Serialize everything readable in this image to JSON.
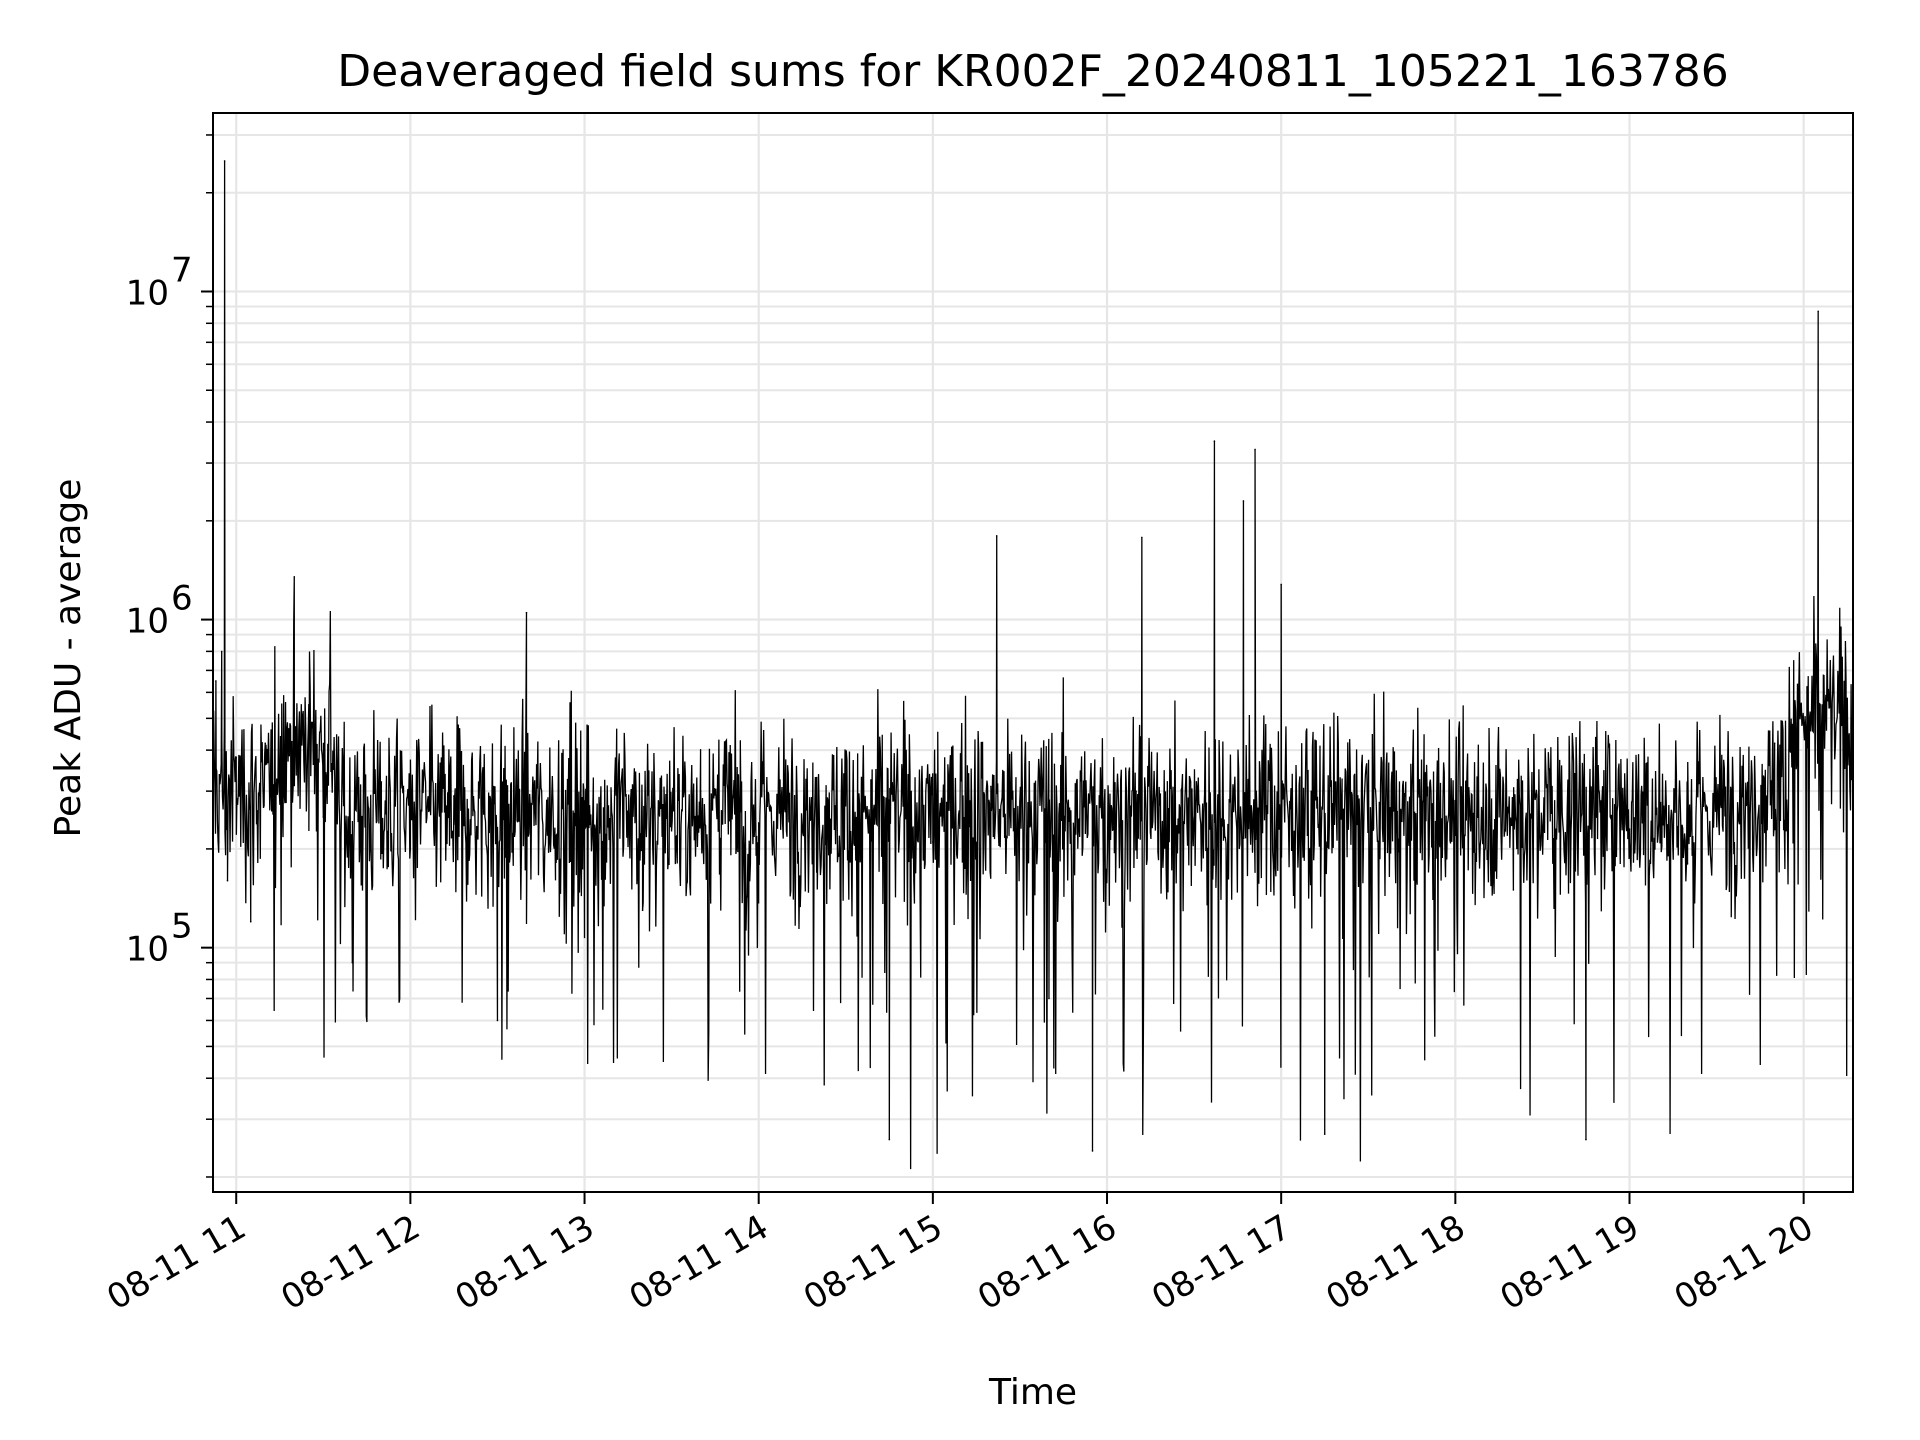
{
  "chart_data": {
    "type": "line",
    "title": "Deaveraged field sums for KR002F_20240811_105221_163786",
    "xlabel": "Time",
    "ylabel": "Peak ADU - average",
    "xscale": "time",
    "yscale": "log",
    "grid": true,
    "legend": "none",
    "xlim": [
      "2024-08-11 10:52",
      "2024-08-11 20:17"
    ],
    "ylim": [
      18000,
      35000000
    ],
    "x_ticks": [
      "08-11 11",
      "08-11 12",
      "08-11 13",
      "08-11 14",
      "08-11 15",
      "08-11 16",
      "08-11 17",
      "08-11 18",
      "08-11 19",
      "08-11 20"
    ],
    "y_ticks": [
      {
        "label": "10",
        "exponent": "5",
        "value": 100000
      },
      {
        "label": "10",
        "exponent": "6",
        "value": 1000000
      },
      {
        "label": "10",
        "exponent": "7",
        "value": 10000000
      }
    ],
    "series": [
      {
        "color": "#000000",
        "points": [
          [
            "2024-08-11 10:52",
            130000
          ],
          [
            "2024-08-11 10:53",
            650000
          ],
          [
            "2024-08-11 10:54",
            210000
          ],
          [
            "2024-08-11 10:55",
            800000
          ],
          [
            "2024-08-11 10:56",
            25000000
          ],
          [
            "2024-08-11 10:57",
            160000
          ],
          [
            "2024-08-11 11:00",
            380000
          ],
          [
            "2024-08-11 11:05",
            120000
          ],
          [
            "2024-08-11 11:10",
            420000
          ],
          [
            "2024-08-11 11:15",
            280000
          ],
          [
            "2024-08-11 11:20",
            1350000
          ],
          [
            "2024-08-11 11:25",
            550000
          ],
          [
            "2024-08-11 11:30",
            250000
          ],
          [
            "2024-08-11 11:40",
            90000
          ],
          [
            "2024-08-11 11:50",
            320000
          ],
          [
            "2024-08-11 12:00",
            200000
          ],
          [
            "2024-08-11 12:15",
            290000
          ],
          [
            "2024-08-11 12:30",
            60000
          ],
          [
            "2024-08-11 12:40",
            1050000
          ],
          [
            "2024-08-11 12:50",
            220000
          ],
          [
            "2024-08-11 13:00",
            280000
          ],
          [
            "2024-08-11 13:20",
            130000
          ],
          [
            "2024-08-11 13:40",
            300000
          ],
          [
            "2024-08-11 14:00",
            240000
          ],
          [
            "2024-08-11 14:20",
            330000
          ],
          [
            "2024-08-11 14:45",
            26000
          ],
          [
            "2024-08-11 15:00",
            210000
          ],
          [
            "2024-08-11 15:20",
            310000
          ],
          [
            "2024-08-11 15:22",
            1800000
          ],
          [
            "2024-08-11 15:40",
            70000
          ],
          [
            "2024-08-11 15:55",
            24000
          ],
          [
            "2024-08-11 16:10",
            300000
          ],
          [
            "2024-08-11 16:12",
            1780000
          ],
          [
            "2024-08-11 16:30",
            250000
          ],
          [
            "2024-08-11 16:37",
            3500000
          ],
          [
            "2024-08-11 16:47",
            2300000
          ],
          [
            "2024-08-11 16:51",
            3300000
          ],
          [
            "2024-08-11 17:00",
            1280000
          ],
          [
            "2024-08-11 17:15",
            27000
          ],
          [
            "2024-08-11 17:40",
            260000
          ],
          [
            "2024-08-11 18:00",
            220000
          ],
          [
            "2024-08-11 18:20",
            150000
          ],
          [
            "2024-08-11 18:45",
            26000
          ],
          [
            "2024-08-11 19:00",
            230000
          ],
          [
            "2024-08-11 19:20",
            180000
          ],
          [
            "2024-08-11 19:35",
            300000
          ],
          [
            "2024-08-11 19:50",
            420000
          ],
          [
            "2024-08-11 20:00",
            480000
          ],
          [
            "2024-08-11 20:05",
            8700000
          ],
          [
            "2024-08-11 20:10",
            600000
          ],
          [
            "2024-08-11 20:17",
            420000
          ]
        ]
      }
    ]
  }
}
